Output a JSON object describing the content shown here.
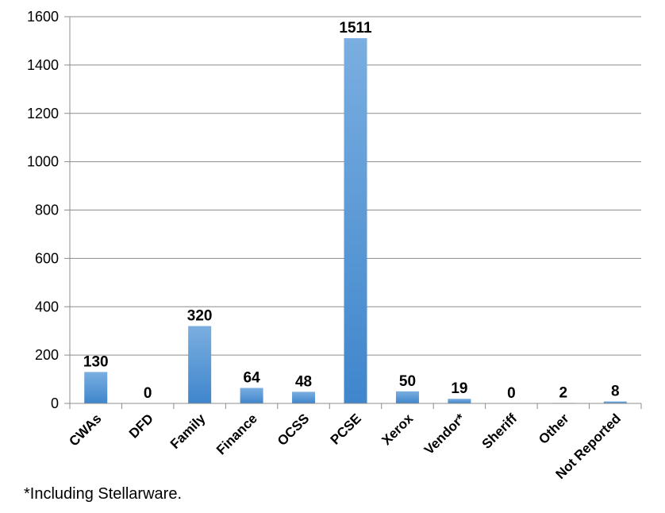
{
  "chart_data": {
    "type": "bar",
    "categories": [
      "CWAs",
      "DFD",
      "Family",
      "Finance",
      "OCSS",
      "PCSE",
      "Xerox",
      "Vendor*",
      "Sheriff",
      "Other",
      "Not Reported"
    ],
    "values": [
      130,
      0,
      320,
      64,
      48,
      1511,
      50,
      19,
      0,
      2,
      8
    ],
    "data_labels": [
      "130",
      "0",
      "320",
      "64",
      "48",
      "1511",
      "50",
      "19",
      "0",
      "2",
      "8"
    ],
    "ylim": [
      0,
      1600
    ],
    "yticks": [
      0,
      200,
      400,
      600,
      800,
      1000,
      1200,
      1400,
      1600
    ],
    "grid": true,
    "bar_color_top": "#7aaee0",
    "bar_color_bottom": "#3f86cc",
    "gridline_color": "#8c8c8c"
  },
  "footnote": "*Including Stellarware."
}
